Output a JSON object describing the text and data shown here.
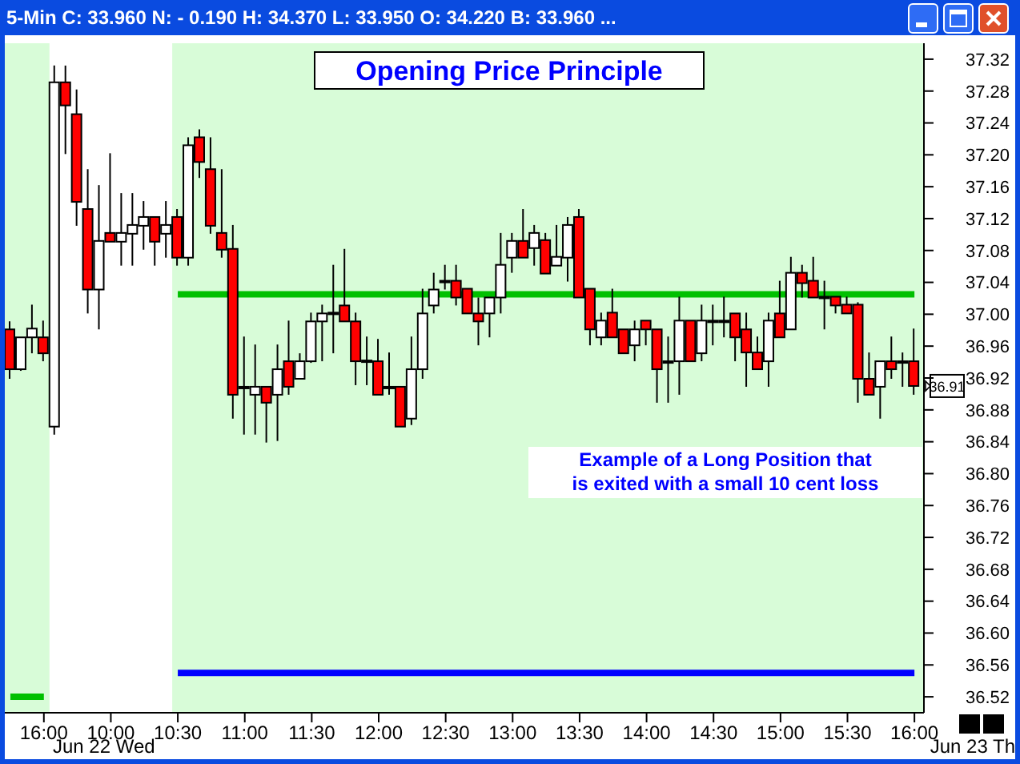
{
  "chart_data": {
    "type": "candlestick",
    "title": "Opening Price Principle",
    "subtitle": "5-Min C: 33.960 N: - 0.190 H: 34.370 L: 33.950 O: 34.220 B: 33.960 ...",
    "categories": [
      null,
      null,
      null,
      "16:00",
      null,
      null,
      null,
      null,
      null,
      "10:00",
      null,
      null,
      null,
      null,
      null,
      "10:30",
      null,
      null,
      null,
      null,
      null,
      "11:00",
      null,
      null,
      null,
      null,
      null,
      "11:30",
      null,
      null,
      null,
      null,
      null,
      "12:00",
      null,
      null,
      null,
      null,
      null,
      "12:30",
      null,
      null,
      null,
      null,
      null,
      "13:00",
      null,
      null,
      null,
      null,
      null,
      "13:30",
      null,
      null,
      null,
      null,
      null,
      "14:00",
      null,
      null,
      null,
      null,
      null,
      "14:30",
      null,
      null,
      null,
      null,
      null,
      "15:00",
      null,
      null,
      null,
      null,
      null,
      "15:30",
      null,
      null,
      null,
      null,
      null,
      "16:00"
    ],
    "ohlc": [
      [
        36.981,
        36.991,
        36.919,
        36.931
      ],
      [
        36.931,
        36.971,
        36.929,
        36.971
      ],
      [
        36.971,
        37.012,
        36.951,
        36.982
      ],
      [
        36.971,
        36.992,
        36.941,
        36.951
      ],
      [
        36.859,
        37.312,
        36.849,
        37.291
      ],
      [
        37.291,
        37.312,
        37.201,
        37.262
      ],
      [
        37.251,
        37.282,
        37.111,
        37.141
      ],
      [
        37.132,
        37.182,
        37.001,
        37.031
      ],
      [
        37.031,
        37.162,
        36.981,
        37.092
      ],
      [
        37.102,
        37.202,
        37.091,
        37.091
      ],
      [
        37.091,
        37.152,
        37.061,
        37.102
      ],
      [
        37.101,
        37.152,
        37.061,
        37.112
      ],
      [
        37.111,
        37.142,
        37.081,
        37.122
      ],
      [
        37.122,
        37.122,
        37.061,
        37.091
      ],
      [
        37.101,
        37.142,
        37.071,
        37.112
      ],
      [
        37.122,
        37.132,
        37.061,
        37.071
      ],
      [
        37.071,
        37.222,
        37.061,
        37.212
      ],
      [
        37.222,
        37.232,
        37.171,
        37.191
      ],
      [
        37.182,
        37.222,
        37.101,
        37.111
      ],
      [
        37.102,
        37.182,
        37.071,
        37.081
      ],
      [
        37.082,
        37.112,
        36.869,
        36.899
      ],
      [
        36.909,
        36.972,
        36.849,
        36.909
      ],
      [
        36.899,
        36.962,
        36.849,
        36.909
      ],
      [
        36.909,
        36.909,
        36.839,
        36.889
      ],
      [
        36.899,
        36.962,
        36.841,
        36.931
      ],
      [
        36.941,
        36.992,
        36.899,
        36.909
      ],
      [
        36.919,
        36.951,
        36.919,
        36.941
      ],
      [
        36.941,
        37.002,
        36.939,
        36.991
      ],
      [
        36.991,
        37.012,
        36.941,
        37.001
      ],
      [
        37.002,
        37.062,
        36.951,
        37.002
      ],
      [
        37.011,
        37.082,
        36.991,
        36.991
      ],
      [
        36.991,
        37.002,
        36.911,
        36.941
      ],
      [
        36.942,
        36.972,
        36.911,
        36.942
      ],
      [
        36.941,
        36.969,
        36.899,
        36.899
      ],
      [
        36.909,
        36.952,
        36.899,
        36.909
      ],
      [
        36.909,
        36.909,
        36.859,
        36.859
      ],
      [
        36.869,
        36.972,
        36.861,
        36.931
      ],
      [
        36.931,
        37.032,
        36.919,
        37.001
      ],
      [
        37.011,
        37.052,
        37.001,
        37.031
      ],
      [
        37.042,
        37.062,
        37.031,
        37.042
      ],
      [
        37.042,
        37.062,
        37.011,
        37.021
      ],
      [
        37.032,
        37.032,
        37.001,
        37.001
      ],
      [
        37.001,
        37.021,
        36.961,
        36.991
      ],
      [
        37.001,
        37.021,
        36.971,
        37.021
      ],
      [
        37.021,
        37.102,
        37.001,
        37.062
      ],
      [
        37.071,
        37.102,
        37.052,
        37.092
      ],
      [
        37.092,
        37.132,
        37.071,
        37.071
      ],
      [
        37.083,
        37.112,
        37.061,
        37.102
      ],
      [
        37.093,
        37.102,
        37.051,
        37.051
      ],
      [
        37.061,
        37.112,
        37.061,
        37.072
      ],
      [
        37.071,
        37.122,
        37.041,
        37.112
      ],
      [
        37.122,
        37.132,
        37.021,
        37.021
      ],
      [
        37.032,
        37.032,
        36.961,
        36.981
      ],
      [
        36.971,
        37.002,
        36.961,
        36.992
      ],
      [
        37.002,
        37.032,
        36.971,
        36.971
      ],
      [
        36.981,
        36.981,
        36.951,
        36.951
      ],
      [
        36.961,
        36.992,
        36.941,
        36.981
      ],
      [
        36.992,
        36.992,
        36.961,
        36.981
      ],
      [
        36.981,
        36.981,
        36.889,
        36.931
      ],
      [
        36.941,
        36.972,
        36.889,
        36.941
      ],
      [
        36.941,
        37.022,
        36.899,
        36.992
      ],
      [
        36.992,
        36.992,
        36.941,
        36.941
      ],
      [
        36.951,
        37.012,
        36.941,
        36.992
      ],
      [
        36.992,
        37.012,
        36.961,
        36.992
      ],
      [
        36.992,
        37.022,
        36.971,
        36.992
      ],
      [
        37.001,
        37.001,
        36.941,
        36.971
      ],
      [
        36.981,
        37.002,
        36.909,
        36.952
      ],
      [
        36.952,
        36.972,
        36.931,
        36.931
      ],
      [
        36.941,
        37.002,
        36.909,
        36.992
      ],
      [
        37.001,
        37.042,
        36.971,
        36.971
      ],
      [
        36.981,
        37.072,
        36.981,
        37.052
      ],
      [
        37.052,
        37.062,
        37.021,
        37.039
      ],
      [
        37.042,
        37.072,
        37.021,
        37.021
      ],
      [
        37.022,
        37.042,
        36.981,
        37.022
      ],
      [
        37.022,
        37.022,
        37.001,
        37.011
      ],
      [
        37.012,
        37.022,
        37.001,
        37.001
      ],
      [
        37.012,
        37.015,
        36.889,
        36.919
      ],
      [
        36.919,
        36.952,
        36.899,
        36.899
      ],
      [
        36.909,
        36.941,
        36.869,
        36.941
      ],
      [
        36.941,
        36.972,
        36.919,
        36.931
      ],
      [
        36.941,
        36.952,
        36.909,
        36.941
      ],
      [
        36.941,
        36.982,
        36.899,
        36.91
      ]
    ],
    "series": [
      {
        "type": "line",
        "color": "#00c000",
        "values": [
          null,
          null,
          null,
          null,
          null,
          null,
          null,
          null,
          null,
          null,
          null,
          null,
          null,
          null,
          null,
          37.025,
          37.025,
          37.025,
          37.025,
          37.025,
          37.025,
          37.025,
          37.025,
          37.025,
          37.025,
          37.025,
          37.025,
          37.025,
          37.025,
          37.025,
          37.025,
          37.025,
          37.025,
          37.025,
          37.025,
          37.025,
          37.025,
          37.025,
          37.025,
          37.025,
          37.025,
          37.025,
          37.025,
          37.025,
          37.025,
          37.025,
          37.025,
          37.025,
          37.025,
          37.025,
          37.025,
          37.025,
          37.025,
          37.025,
          37.025,
          37.025,
          37.025,
          37.025,
          37.025,
          37.025,
          37.025,
          37.025,
          37.025,
          37.025,
          37.025,
          37.025,
          37.025,
          37.025,
          37.025,
          37.025,
          37.025,
          37.025,
          37.025,
          37.025,
          37.025,
          37.025,
          37.025,
          37.025,
          37.025,
          37.025,
          37.025,
          37.025
        ]
      },
      {
        "type": "line",
        "color": "#0000ff",
        "values": [
          null,
          null,
          null,
          null,
          null,
          null,
          null,
          null,
          null,
          null,
          null,
          null,
          null,
          null,
          null,
          36.55,
          36.55,
          36.55,
          36.55,
          36.55,
          36.55,
          36.55,
          36.55,
          36.55,
          36.55,
          36.55,
          36.55,
          36.55,
          36.55,
          36.55,
          36.55,
          36.55,
          36.55,
          36.55,
          36.55,
          36.55,
          36.55,
          36.55,
          36.55,
          36.55,
          36.55,
          36.55,
          36.55,
          36.55,
          36.55,
          36.55,
          36.55,
          36.55,
          36.55,
          36.55,
          36.55,
          36.55,
          36.55,
          36.55,
          36.55,
          36.55,
          36.55,
          36.55,
          36.55,
          36.55,
          36.55,
          36.55,
          36.55,
          36.55,
          36.55,
          36.55,
          36.55,
          36.55,
          36.55,
          36.55,
          36.55,
          36.55,
          36.55,
          36.55,
          36.55,
          36.55,
          36.55,
          36.55,
          36.55,
          36.55,
          36.55,
          36.55
        ]
      },
      {
        "type": "line",
        "color": "#00c000",
        "values": [
          36.52,
          36.52,
          36.52,
          36.52,
          null,
          null,
          null,
          null,
          null,
          null,
          null,
          null,
          null,
          null,
          null,
          null,
          null,
          null,
          null,
          null,
          null,
          null,
          null,
          null,
          null,
          null,
          null,
          null,
          null,
          null,
          null,
          null,
          null,
          null,
          null,
          null,
          null,
          null,
          null,
          null,
          null,
          null,
          null,
          null,
          null,
          null,
          null,
          null,
          null,
          null,
          null,
          null,
          null,
          null,
          null,
          null,
          null,
          null,
          null,
          null,
          null,
          null,
          null,
          null,
          null,
          null,
          null,
          null,
          null,
          null,
          null,
          null,
          null,
          null,
          null,
          null,
          null,
          null,
          null,
          null,
          null,
          null
        ]
      }
    ],
    "ylim": [
      36.5,
      37.34
    ],
    "yticks": [
      36.52,
      36.56,
      {
        "value": 36.6,
        "label": "36.60"
      },
      36.64,
      36.68,
      36.72,
      36.76,
      {
        "value": 36.8,
        "label": "36.80"
      },
      36.84,
      36.88,
      36.92,
      36.96,
      {
        "value": 37,
        "label": "37.00"
      },
      37.04,
      37.08,
      37.12,
      37.16,
      {
        "value": 37.2,
        "label": "37.20"
      },
      37.24,
      37.28,
      37.32
    ],
    "bands": [
      {
        "axis": "x",
        "from": "16:00",
        "to": "10:30",
        "color": "#ffffff"
      }
    ],
    "annotations": [
      "Example of a Long Position that\nis exited with a small 10 cent loss",
      "Jun 22 Wed",
      "Jun 23 Th",
      "36.91"
    ]
  }
}
